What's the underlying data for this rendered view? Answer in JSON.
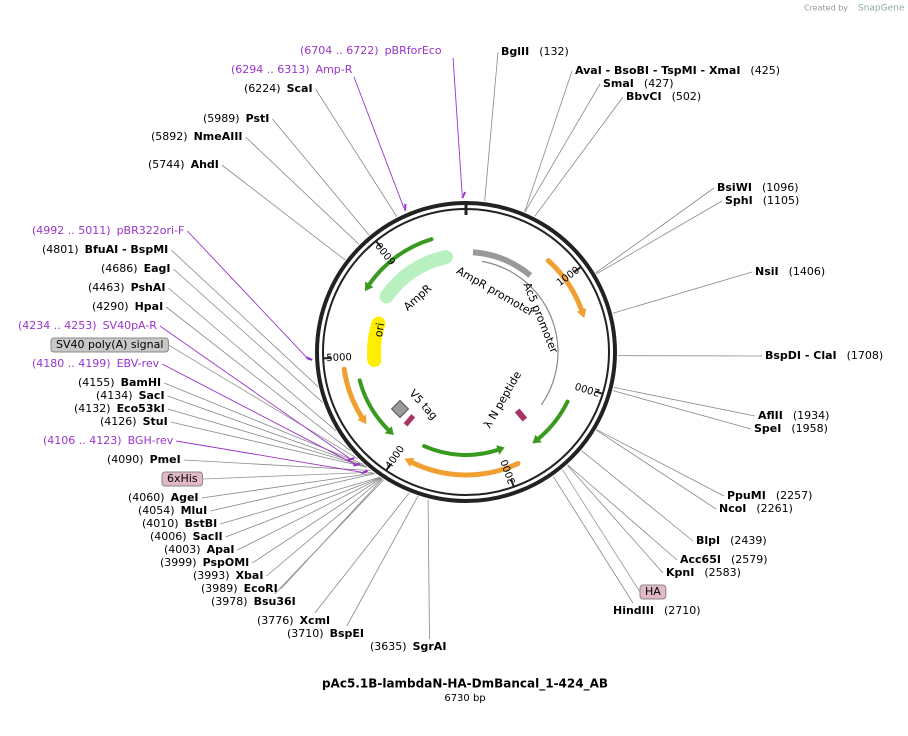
{
  "header": {
    "credit": "Created by",
    "brand": "SnapGene"
  },
  "title": "pAc5.1B-lambdaN-HA-DmBancal_1-424_AB",
  "size": "6730 bp",
  "ticks": [
    1000,
    2000,
    3000,
    4000,
    5000,
    6000
  ],
  "features": [
    "AmpR",
    "AmpR promoter",
    "Ac5 promoter",
    "ori",
    "V5 tag",
    "λ N peptide"
  ],
  "feature_boxes": [
    "SV40 poly(A) signal",
    "6xHis",
    "HA"
  ],
  "sites": [
    {
      "name": "BglII",
      "pos": "(132)"
    },
    {
      "name": "AvaI  - BsoBI  - TspMI  - XmaI",
      "pos": "(425)"
    },
    {
      "name": "SmaI",
      "pos": "(427)"
    },
    {
      "name": "BbvCI",
      "pos": "(502)"
    },
    {
      "name": "BsiWI",
      "pos": "(1096)"
    },
    {
      "name": "SphI",
      "pos": "(1105)"
    },
    {
      "name": "NsiI",
      "pos": "(1406)"
    },
    {
      "name": "BspDI  - ClaI",
      "pos": "(1708)"
    },
    {
      "name": "AflII",
      "pos": "(1934)"
    },
    {
      "name": "SpeI",
      "pos": "(1958)"
    },
    {
      "name": "PpuMI",
      "pos": "(2257)"
    },
    {
      "name": "NcoI",
      "pos": "(2261)"
    },
    {
      "name": "BlpI",
      "pos": "(2439)"
    },
    {
      "name": "Acc65I",
      "pos": "(2579)"
    },
    {
      "name": "KpnI",
      "pos": "(2583)"
    },
    {
      "name": "HindIII",
      "pos": "(2710)"
    },
    {
      "name": "SgrAI",
      "pos": "(3635)"
    },
    {
      "name": "BspEI",
      "pos": "(3710)"
    },
    {
      "name": "XcmI",
      "pos": "(3776)"
    },
    {
      "name": "Bsu36I",
      "pos": "(3978)"
    },
    {
      "name": "EcoRI",
      "pos": "(3989)"
    },
    {
      "name": "XbaI",
      "pos": "(3993)"
    },
    {
      "name": "PspOMI",
      "pos": "(3999)"
    },
    {
      "name": "ApaI",
      "pos": "(4003)"
    },
    {
      "name": "SacII",
      "pos": "(4006)"
    },
    {
      "name": "BstBI",
      "pos": "(4010)"
    },
    {
      "name": "MluI",
      "pos": "(4054)"
    },
    {
      "name": "AgeI",
      "pos": "(4060)"
    },
    {
      "name": "PmeI",
      "pos": "(4090)"
    },
    {
      "name": "StuI",
      "pos": "(4126)"
    },
    {
      "name": "Eco53kI",
      "pos": "(4132)"
    },
    {
      "name": "SacI",
      "pos": "(4134)"
    },
    {
      "name": "BamHI",
      "pos": "(4155)"
    },
    {
      "name": "HpaI",
      "pos": "(4290)"
    },
    {
      "name": "PshAI",
      "pos": "(4463)"
    },
    {
      "name": "EagI",
      "pos": "(4686)"
    },
    {
      "name": "BfuAI  - BspMI",
      "pos": "(4801)"
    },
    {
      "name": "AhdI",
      "pos": "(5744)"
    },
    {
      "name": "NmeAIII",
      "pos": "(5892)"
    },
    {
      "name": "PstI",
      "pos": "(5989)"
    },
    {
      "name": "ScaI",
      "pos": "(6224)"
    }
  ],
  "primers": [
    {
      "range": "(6704 .. 6722)",
      "name": "pBRforEco"
    },
    {
      "range": "(6294 .. 6313)",
      "name": "Amp-R"
    },
    {
      "range": "(4992 .. 5011)",
      "name": "pBR322ori-F"
    },
    {
      "range": "(4234 .. 4253)",
      "name": "SV40pA-R"
    },
    {
      "range": "(4180 .. 4199)",
      "name": "EBV-rev"
    },
    {
      "range": "(4106 .. 4123)",
      "name": "BGH-rev"
    }
  ]
}
